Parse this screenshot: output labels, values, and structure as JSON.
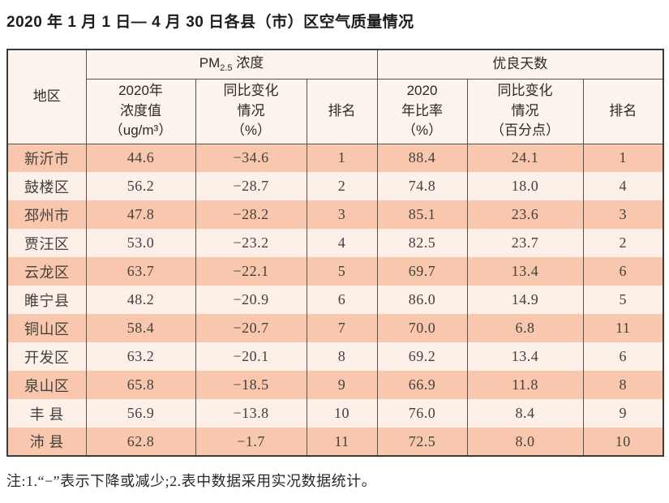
{
  "title": "2020 年 1 月 1 日— 4 月 30 日各县（市）区空气质量情况",
  "colors": {
    "row_odd_bg": "#f8c7ad",
    "row_even_bg": "#fdf0e9",
    "header_bg": "#fcf3ec",
    "border": "#57524e",
    "outer_border": "#3e3a38",
    "text": "#44403c"
  },
  "table": {
    "group_headers": {
      "region": "地区",
      "pm": {
        "prefix": "PM",
        "sub": "2.5",
        "suffix": " 浓度"
      },
      "days": "优良天数"
    },
    "sub_headers": {
      "pm_value": "2020年\n浓度值\n（ug/m³）",
      "pm_change": "同比变化\n情况\n（%）",
      "pm_rank": "排名",
      "days_rate": "2020\n年比率\n（%）",
      "days_change": "同比变化\n情况\n（百分点）",
      "days_rank": "排名"
    },
    "column_keys": [
      "region",
      "pm_value",
      "pm_change",
      "pm_rank",
      "days_rate",
      "days_change",
      "days_rank"
    ],
    "rows": [
      {
        "region": "新沂市",
        "pm_value": "44.6",
        "pm_change": "−34.6",
        "pm_rank": "1",
        "days_rate": "88.4",
        "days_change": "24.1",
        "days_rank": "1"
      },
      {
        "region": "鼓楼区",
        "pm_value": "56.2",
        "pm_change": "−28.7",
        "pm_rank": "2",
        "days_rate": "74.8",
        "days_change": "18.0",
        "days_rank": "4"
      },
      {
        "region": "邳州市",
        "pm_value": "47.8",
        "pm_change": "−28.2",
        "pm_rank": "3",
        "days_rate": "85.1",
        "days_change": "23.6",
        "days_rank": "3"
      },
      {
        "region": "贾汪区",
        "pm_value": "53.0",
        "pm_change": "−23.2",
        "pm_rank": "4",
        "days_rate": "82.5",
        "days_change": "23.7",
        "days_rank": "2"
      },
      {
        "region": "云龙区",
        "pm_value": "63.7",
        "pm_change": "−22.1",
        "pm_rank": "5",
        "days_rate": "69.7",
        "days_change": "13.4",
        "days_rank": "6"
      },
      {
        "region": "睢宁县",
        "pm_value": "48.2",
        "pm_change": "−20.9",
        "pm_rank": "6",
        "days_rate": "86.0",
        "days_change": "14.9",
        "days_rank": "5"
      },
      {
        "region": "铜山区",
        "pm_value": "58.4",
        "pm_change": "−20.7",
        "pm_rank": "7",
        "days_rate": "70.0",
        "days_change": "6.8",
        "days_rank": "11"
      },
      {
        "region": "开发区",
        "pm_value": "63.2",
        "pm_change": "−20.1",
        "pm_rank": "8",
        "days_rate": "69.2",
        "days_change": "13.4",
        "days_rank": "6"
      },
      {
        "region": "泉山区",
        "pm_value": "65.8",
        "pm_change": "−18.5",
        "pm_rank": "9",
        "days_rate": "66.9",
        "days_change": "11.8",
        "days_rank": "8"
      },
      {
        "region": "丰 县",
        "pm_value": "56.9",
        "pm_change": "−13.8",
        "pm_rank": "10",
        "days_rate": "76.0",
        "days_change": "8.4",
        "days_rank": "9"
      },
      {
        "region": "沛 县",
        "pm_value": "62.8",
        "pm_change": "−1.7",
        "pm_rank": "11",
        "days_rate": "72.5",
        "days_change": "8.0",
        "days_rank": "10"
      }
    ]
  },
  "footnote": "注:1.“−”表示下降或减少;2.表中数据采用实况数据统计。"
}
